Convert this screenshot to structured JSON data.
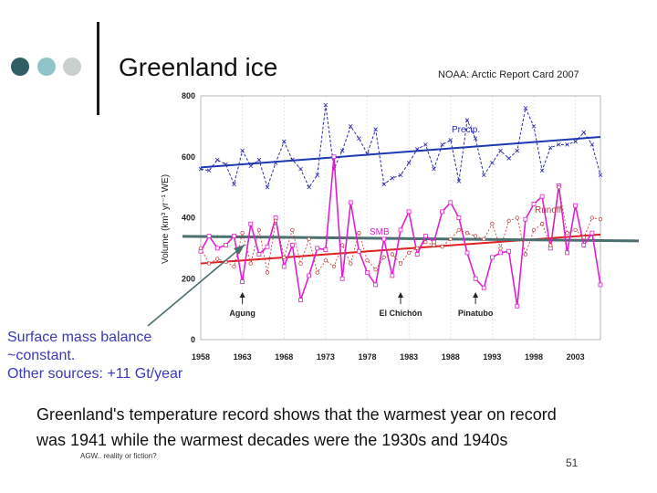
{
  "slide": {
    "title": "Greenland ice",
    "source": "NOAA: Arctic Report Card 2007",
    "note_lines": [
      "Surface mass balance",
      "~constant.",
      "Other sources: +11 Gt/year"
    ],
    "caption_lines": [
      "Greenland's temperature record shows that the warmest year on record",
      "was 1941 while the warmest decades were the 1930s and 1940s"
    ],
    "footer": "AGW.. reality or fiction?",
    "page_number": "51"
  },
  "chart_data": {
    "type": "line",
    "title": "",
    "xlabel": "",
    "ylabel": "Volume (km³ yr⁻¹ WE)",
    "xlim": [
      1958,
      2006
    ],
    "ylim": [
      0,
      800
    ],
    "x_ticks": [
      1958,
      1963,
      1968,
      1973,
      1978,
      1983,
      1988,
      1993,
      1998,
      2003
    ],
    "y_ticks": [
      0,
      200,
      400,
      600,
      800
    ],
    "colors": {
      "precip": "#2a2ab0",
      "smb": "#e020d0",
      "runoff": "#c03030",
      "trend_precip": "#1a3ab0",
      "trend_runoff": "#e02020",
      "trend_smb": "#4a7070",
      "arrow": "#4a7070"
    },
    "x": [
      1958,
      1959,
      1960,
      1961,
      1962,
      1963,
      1964,
      1965,
      1966,
      1967,
      1968,
      1969,
      1970,
      1971,
      1972,
      1973,
      1974,
      1975,
      1976,
      1977,
      1978,
      1979,
      1980,
      1981,
      1982,
      1983,
      1984,
      1985,
      1986,
      1987,
      1988,
      1989,
      1990,
      1991,
      1992,
      1993,
      1994,
      1995,
      1996,
      1997,
      1998,
      1999,
      2000,
      2001,
      2002,
      2003,
      2004,
      2005,
      2006
    ],
    "series": [
      {
        "name": "Precip",
        "label": "Precip.",
        "values": [
          560,
          555,
          590,
          575,
          510,
          620,
          570,
          590,
          500,
          580,
          650,
          590,
          560,
          500,
          540,
          770,
          560,
          620,
          700,
          660,
          610,
          690,
          510,
          530,
          540,
          580,
          625,
          640,
          560,
          640,
          655,
          520,
          720,
          660,
          540,
          580,
          620,
          595,
          620,
          760,
          700,
          555,
          630,
          640,
          640,
          650,
          680,
          640,
          540
        ],
        "trend": [
          565,
          665
        ]
      },
      {
        "name": "SMB",
        "label": "SMB",
        "values": [
          290,
          340,
          300,
          310,
          340,
          190,
          380,
          280,
          305,
          400,
          240,
          310,
          130,
          210,
          300,
          295,
          600,
          200,
          450,
          290,
          220,
          180,
          330,
          210,
          360,
          420,
          280,
          340,
          320,
          420,
          450,
          400,
          285,
          200,
          170,
          270,
          285,
          290,
          110,
          395,
          445,
          470,
          300,
          505,
          285,
          440,
          310,
          350,
          180
        ],
        "trend": [
          330,
          330
        ]
      },
      {
        "name": "Runoff",
        "label": "Runoff",
        "values": [
          300,
          250,
          265,
          255,
          240,
          350,
          250,
          360,
          220,
          390,
          270,
          360,
          250,
          330,
          220,
          260,
          240,
          310,
          250,
          350,
          260,
          230,
          270,
          280,
          250,
          285,
          300,
          320,
          310,
          305,
          330,
          360,
          350,
          340,
          330,
          380,
          300,
          390,
          400,
          280,
          360,
          380,
          310,
          500,
          350,
          360,
          335,
          400,
          395
        ],
        "trend": [
          250,
          345
        ]
      }
    ],
    "annotations": [
      {
        "label": "Agung",
        "x": 1963
      },
      {
        "label": "El Chichón",
        "x": 1982
      },
      {
        "label": "Pinatubo",
        "x": 1991
      }
    ]
  }
}
